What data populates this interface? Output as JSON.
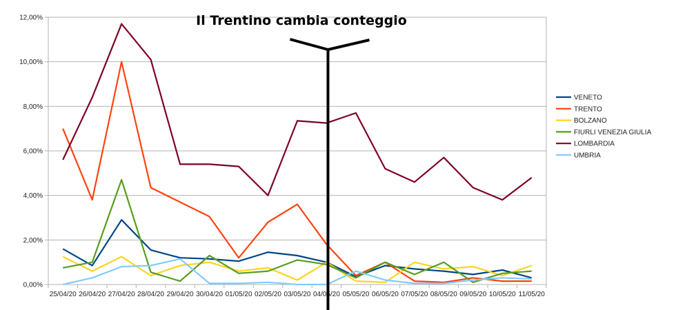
{
  "chart_data": {
    "type": "line",
    "title": "",
    "xlabel": "",
    "ylabel": "",
    "categories": [
      "25/04/20",
      "26/04/20",
      "27/04/20",
      "28/04/20",
      "29/04/20",
      "30/04/20",
      "01/05/20",
      "02/05/20",
      "03/05/20",
      "04/05/20",
      "05/05/20",
      "06/05/20",
      "07/05/20",
      "08/05/20",
      "09/05/20",
      "10/05/20",
      "11/05/20"
    ],
    "ylim": [
      0,
      12
    ],
    "y_ticks": [
      "0,00%",
      "2,00%",
      "4,00%",
      "6,00%",
      "8,00%",
      "10,00%",
      "12,00%"
    ],
    "grid": "horizontal",
    "legend_position": "right",
    "annotation": "Il Trentino cambia conteggio",
    "series": [
      {
        "name": "VENETO",
        "color": "#004586",
        "values": [
          1.6,
          0.85,
          2.9,
          1.55,
          1.2,
          1.15,
          1.05,
          1.45,
          1.3,
          1.0,
          0.35,
          0.85,
          0.7,
          0.6,
          0.45,
          0.65,
          0.3
        ]
      },
      {
        "name": "TRENTO",
        "color": "#ff420e",
        "values": [
          7.0,
          3.8,
          10.0,
          4.35,
          3.7,
          3.05,
          1.2,
          2.8,
          3.6,
          1.8,
          0.4,
          1.0,
          0.15,
          0.1,
          0.3,
          0.15,
          0.15
        ]
      },
      {
        "name": "BOLZANO",
        "color": "#ffd320",
        "values": [
          1.25,
          0.6,
          1.25,
          0.4,
          0.85,
          1.0,
          0.6,
          0.75,
          0.2,
          1.0,
          0.15,
          0.1,
          1.0,
          0.7,
          0.8,
          0.4,
          0.85
        ]
      },
      {
        "name": "FIURLI VENEZIA GIULIA",
        "color": "#579d1c",
        "values": [
          0.75,
          1.0,
          4.7,
          0.55,
          0.15,
          1.3,
          0.5,
          0.6,
          1.1,
          0.9,
          0.3,
          1.0,
          0.45,
          1.0,
          0.1,
          0.5,
          0.6
        ]
      },
      {
        "name": "LOMBARDIA",
        "color": "#7e0021",
        "values": [
          5.6,
          8.4,
          11.7,
          10.1,
          5.4,
          5.4,
          5.3,
          4.0,
          7.35,
          7.25,
          7.7,
          5.2,
          4.6,
          5.7,
          4.35,
          3.8,
          4.8
        ]
      },
      {
        "name": "UMBRIA",
        "color": "#83caff",
        "values": [
          0.0,
          0.3,
          0.8,
          0.85,
          1.15,
          0.05,
          0.05,
          0.1,
          0.0,
          0.0,
          0.6,
          0.2,
          0.05,
          0.05,
          0.2,
          0.3,
          0.25
        ]
      }
    ]
  }
}
